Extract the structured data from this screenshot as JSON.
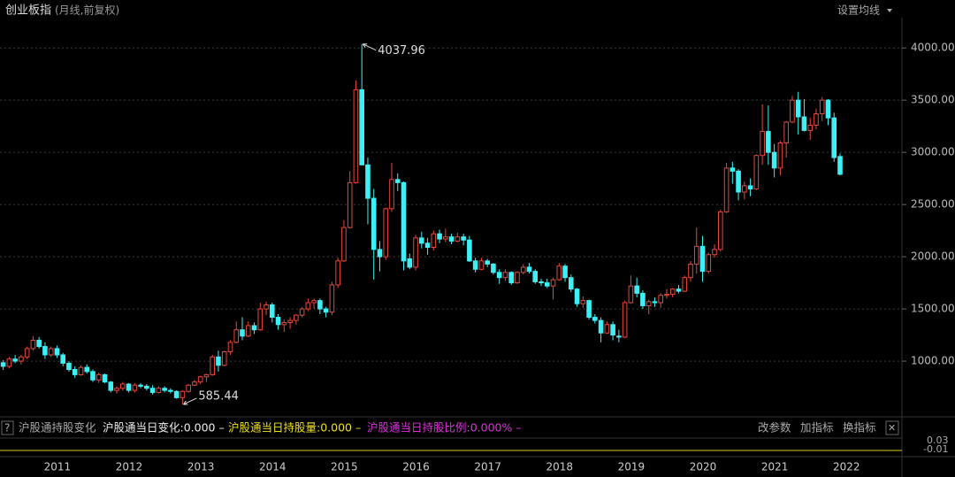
{
  "chart_data": {
    "type": "candlestick",
    "title": "创业板指",
    "subtitle": "(月线,前复权)",
    "up_color": "#e8463a",
    "down_color": "#3df0f5",
    "grid": true,
    "ylim": [
      475,
      4290
    ],
    "yticks": [
      {
        "value": 1000,
        "label": "1000.00"
      },
      {
        "value": 1500,
        "label": "1500.00"
      },
      {
        "value": 2000,
        "label": "2000.00"
      },
      {
        "value": 2500,
        "label": "2500.00"
      },
      {
        "value": 3000,
        "label": "3000.00"
      },
      {
        "value": 3500,
        "label": "3500.00"
      },
      {
        "value": 4000,
        "label": "4000.00"
      }
    ],
    "categories": [
      null,
      null,
      null,
      null,
      null,
      null,
      null,
      "2011",
      null,
      null,
      null,
      null,
      null,
      null,
      null,
      null,
      null,
      null,
      null,
      "2012",
      null,
      null,
      null,
      null,
      null,
      null,
      null,
      null,
      null,
      null,
      null,
      "2013",
      null,
      null,
      null,
      null,
      null,
      null,
      null,
      null,
      null,
      null,
      null,
      "2014",
      null,
      null,
      null,
      null,
      null,
      null,
      null,
      null,
      null,
      null,
      null,
      "2015",
      null,
      null,
      null,
      null,
      null,
      null,
      null,
      null,
      null,
      null,
      null,
      "2016",
      null,
      null,
      null,
      null,
      null,
      null,
      null,
      null,
      null,
      null,
      null,
      "2017",
      null,
      null,
      null,
      null,
      null,
      null,
      null,
      null,
      null,
      null,
      null,
      "2018",
      null,
      null,
      null,
      null,
      null,
      null,
      null,
      null,
      null,
      null,
      null,
      "2019",
      null,
      null,
      null,
      null,
      null,
      null,
      null,
      null,
      null,
      null,
      null,
      "2020",
      null,
      null,
      null,
      null,
      null,
      null,
      null,
      null,
      null,
      null,
      null,
      "2021",
      null,
      null,
      null,
      null,
      null,
      null,
      null,
      null,
      null,
      null,
      null,
      "2022",
      null
    ],
    "candles": [
      [
        985,
        1010,
        915,
        950
      ],
      [
        950,
        1040,
        930,
        1020
      ],
      [
        1020,
        1060,
        980,
        1000
      ],
      [
        1000,
        1060,
        970,
        1040
      ],
      [
        1040,
        1140,
        1020,
        1120
      ],
      [
        1120,
        1240,
        1100,
        1200
      ],
      [
        1200,
        1230,
        1120,
        1140
      ],
      [
        1140,
        1180,
        1020,
        1060
      ],
      [
        1060,
        1140,
        1040,
        1120
      ],
      [
        1120,
        1150,
        1030,
        1060
      ],
      [
        1060,
        1080,
        950,
        980
      ],
      [
        980,
        1000,
        900,
        920
      ],
      [
        920,
        950,
        840,
        870
      ],
      [
        870,
        960,
        860,
        940
      ],
      [
        940,
        970,
        880,
        900
      ],
      [
        900,
        920,
        800,
        820
      ],
      [
        820,
        890,
        790,
        870
      ],
      [
        870,
        880,
        790,
        800
      ],
      [
        800,
        810,
        700,
        720
      ],
      [
        720,
        760,
        690,
        740
      ],
      [
        740,
        800,
        720,
        780
      ],
      [
        780,
        790,
        700,
        720
      ],
      [
        720,
        790,
        700,
        770
      ],
      [
        770,
        790,
        740,
        760
      ],
      [
        760,
        780,
        720,
        740
      ],
      [
        740,
        770,
        680,
        700
      ],
      [
        700,
        760,
        690,
        740
      ],
      [
        740,
        760,
        700,
        720
      ],
      [
        720,
        740,
        690,
        710
      ],
      [
        710,
        720,
        640,
        650
      ],
      [
        650,
        720,
        585.44,
        710
      ],
      [
        710,
        780,
        700,
        770
      ],
      [
        770,
        820,
        760,
        800
      ],
      [
        800,
        860,
        780,
        850
      ],
      [
        850,
        880,
        800,
        870
      ],
      [
        870,
        1060,
        860,
        1040
      ],
      [
        1040,
        1100,
        900,
        960
      ],
      [
        960,
        1100,
        950,
        1090
      ],
      [
        1090,
        1200,
        1060,
        1180
      ],
      [
        1180,
        1380,
        1170,
        1300
      ],
      [
        1300,
        1420,
        1200,
        1240
      ],
      [
        1240,
        1380,
        1230,
        1340
      ],
      [
        1340,
        1370,
        1260,
        1300
      ],
      [
        1300,
        1560,
        1290,
        1500
      ],
      [
        1500,
        1570,
        1440,
        1540
      ],
      [
        1540,
        1560,
        1370,
        1420
      ],
      [
        1420,
        1450,
        1300,
        1350
      ],
      [
        1350,
        1400,
        1280,
        1370
      ],
      [
        1370,
        1420,
        1310,
        1390
      ],
      [
        1390,
        1450,
        1350,
        1440
      ],
      [
        1440,
        1520,
        1420,
        1500
      ],
      [
        1500,
        1600,
        1480,
        1560
      ],
      [
        1560,
        1600,
        1500,
        1580
      ],
      [
        1580,
        1600,
        1450,
        1500
      ],
      [
        1500,
        1520,
        1420,
        1470
      ],
      [
        1470,
        1760,
        1440,
        1730
      ],
      [
        1730,
        1990,
        1700,
        1960
      ],
      [
        1960,
        2350,
        1950,
        2280
      ],
      [
        2280,
        2820,
        2270,
        2710
      ],
      [
        2710,
        3690,
        2700,
        3600
      ],
      [
        3600,
        4037.96,
        2890,
        2880
      ],
      [
        2880,
        2950,
        2310,
        2560
      ],
      [
        2560,
        2650,
        1780,
        2070
      ],
      [
        2070,
        2150,
        1860,
        2000
      ],
      [
        2000,
        2470,
        1970,
        2460
      ],
      [
        2460,
        2900,
        2430,
        2740
      ],
      [
        2740,
        2800,
        2630,
        2710
      ],
      [
        2710,
        2720,
        1870,
        1960
      ],
      [
        1980,
        2030,
        1880,
        1900
      ],
      [
        1900,
        2210,
        1870,
        2180
      ],
      [
        2180,
        2240,
        2080,
        2130
      ],
      [
        2130,
        2180,
        2020,
        2090
      ],
      [
        2090,
        2250,
        2060,
        2220
      ],
      [
        2220,
        2260,
        2130,
        2170
      ],
      [
        2170,
        2270,
        2140,
        2190
      ],
      [
        2190,
        2220,
        2120,
        2150
      ],
      [
        2150,
        2230,
        2140,
        2190
      ],
      [
        2190,
        2220,
        2110,
        2160
      ],
      [
        2160,
        2200,
        1950,
        1960
      ],
      [
        1960,
        1990,
        1850,
        1880
      ],
      [
        1880,
        1990,
        1870,
        1960
      ],
      [
        1960,
        1980,
        1900,
        1930
      ],
      [
        1930,
        1940,
        1830,
        1850
      ],
      [
        1850,
        1880,
        1740,
        1800
      ],
      [
        1800,
        1880,
        1770,
        1850
      ],
      [
        1850,
        1860,
        1730,
        1750
      ],
      [
        1750,
        1860,
        1740,
        1850
      ],
      [
        1850,
        1930,
        1830,
        1900
      ],
      [
        1900,
        1940,
        1840,
        1860
      ],
      [
        1860,
        1880,
        1740,
        1760
      ],
      [
        1760,
        1790,
        1720,
        1750
      ],
      [
        1750,
        1790,
        1700,
        1720
      ],
      [
        1720,
        1800,
        1590,
        1780
      ],
      [
        1780,
        1940,
        1770,
        1910
      ],
      [
        1910,
        1930,
        1760,
        1800
      ],
      [
        1800,
        1830,
        1660,
        1690
      ],
      [
        1690,
        1700,
        1520,
        1550
      ],
      [
        1550,
        1620,
        1510,
        1580
      ],
      [
        1580,
        1590,
        1400,
        1420
      ],
      [
        1420,
        1450,
        1360,
        1390
      ],
      [
        1390,
        1420,
        1180,
        1270
      ],
      [
        1270,
        1380,
        1260,
        1350
      ],
      [
        1350,
        1380,
        1200,
        1250
      ],
      [
        1240,
        1300,
        1180,
        1230
      ],
      [
        1230,
        1580,
        1220,
        1560
      ],
      [
        1560,
        1820,
        1550,
        1720
      ],
      [
        1720,
        1800,
        1610,
        1650
      ],
      [
        1650,
        1680,
        1500,
        1530
      ],
      [
        1530,
        1590,
        1450,
        1570
      ],
      [
        1570,
        1610,
        1520,
        1560
      ],
      [
        1560,
        1650,
        1510,
        1630
      ],
      [
        1630,
        1690,
        1600,
        1640
      ],
      [
        1640,
        1700,
        1610,
        1690
      ],
      [
        1690,
        1730,
        1650,
        1670
      ],
      [
        1670,
        1820,
        1660,
        1800
      ],
      [
        1800,
        1960,
        1760,
        1930
      ],
      [
        1930,
        2280,
        1840,
        2100
      ],
      [
        2100,
        2200,
        1760,
        1860
      ],
      [
        1860,
        2040,
        1840,
        2020
      ],
      [
        2020,
        2120,
        1990,
        2070
      ],
      [
        2070,
        2450,
        2050,
        2430
      ],
      [
        2430,
        2900,
        2420,
        2850
      ],
      [
        2850,
        2910,
        2700,
        2820
      ],
      [
        2820,
        2840,
        2540,
        2620
      ],
      [
        2620,
        2720,
        2550,
        2680
      ],
      [
        2680,
        2750,
        2580,
        2650
      ],
      [
        2650,
        2980,
        2640,
        2970
      ],
      [
        2970,
        3460,
        2880,
        3200
      ],
      [
        3200,
        3450,
        2880,
        3000
      ],
      [
        3000,
        3080,
        2760,
        2850
      ],
      [
        2850,
        3110,
        2780,
        3090
      ],
      [
        3090,
        3300,
        2950,
        3290
      ],
      [
        3290,
        3540,
        3280,
        3500
      ],
      [
        3500,
        3580,
        3170,
        3340
      ],
      [
        3340,
        3510,
        3200,
        3210
      ],
      [
        3210,
        3330,
        3120,
        3260
      ],
      [
        3260,
        3420,
        3220,
        3370
      ],
      [
        3370,
        3530,
        3300,
        3500
      ],
      [
        3500,
        3510,
        3260,
        3330
      ],
      [
        3330,
        3380,
        2910,
        2950
      ],
      [
        2960,
        2990,
        2780,
        2790
      ]
    ]
  },
  "ui": {
    "ma_button": "设置均线",
    "help": "?",
    "indicator_name": "沪股通持股变化",
    "indicator_values": [
      "沪股通当日变化:0.000 –",
      "沪股通当日持股量:0.000 –",
      "沪股通当日持股比例:0.000% –"
    ],
    "buttons": [
      "改参数",
      "加指标",
      "换指标"
    ],
    "close": "✕",
    "sub_axis": [
      "0.03",
      "-0.01"
    ]
  }
}
